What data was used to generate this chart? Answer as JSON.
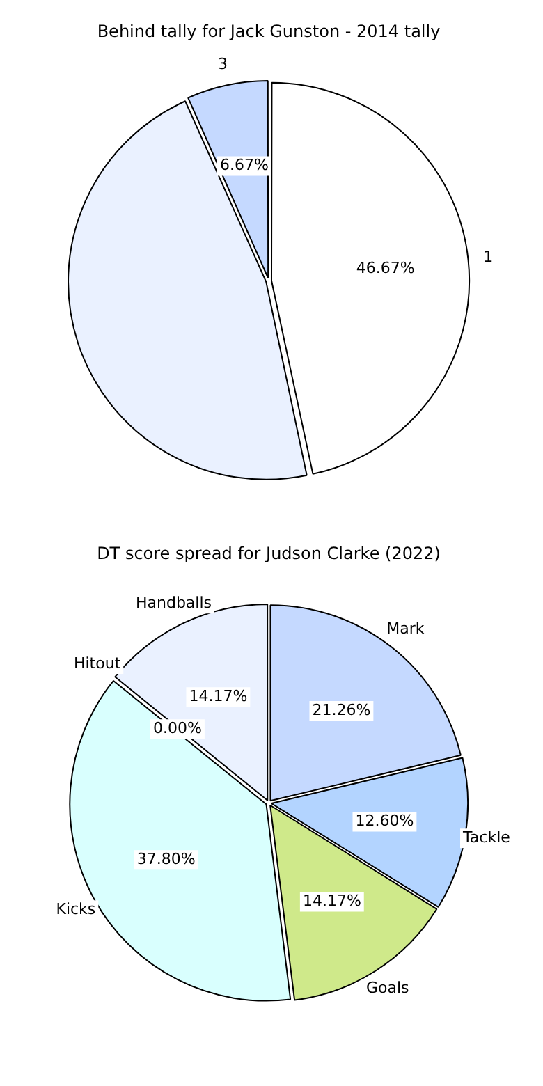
{
  "chart_data": [
    {
      "type": "pie",
      "title": "Behind tally for Jack Gunston - 2014 tally",
      "categories": [
        "1",
        null,
        "3"
      ],
      "values": [
        46.67,
        46.66,
        6.67
      ],
      "colors": [
        "#ffffff",
        "#eaf1ff",
        "#c5d9ff"
      ],
      "value_labels": [
        "46.67%",
        null,
        "6.67%"
      ]
    },
    {
      "type": "pie",
      "title": "DT score spread for Judson Clarke (2022)",
      "categories": [
        "Mark",
        "Tackle",
        "Goals",
        "Kicks",
        "Hitout",
        "Handballs"
      ],
      "values": [
        21.26,
        12.6,
        14.17,
        37.8,
        0.0,
        14.17
      ],
      "colors": [
        "#c5d9ff",
        "#b3d4ff",
        "#cfe98a",
        "#d9fffe",
        "#e0e0e0",
        "#eaf1ff"
      ],
      "value_labels": [
        "21.26%",
        "12.60%",
        "14.17%",
        "37.80%",
        "0.00%",
        "14.17%"
      ]
    }
  ]
}
